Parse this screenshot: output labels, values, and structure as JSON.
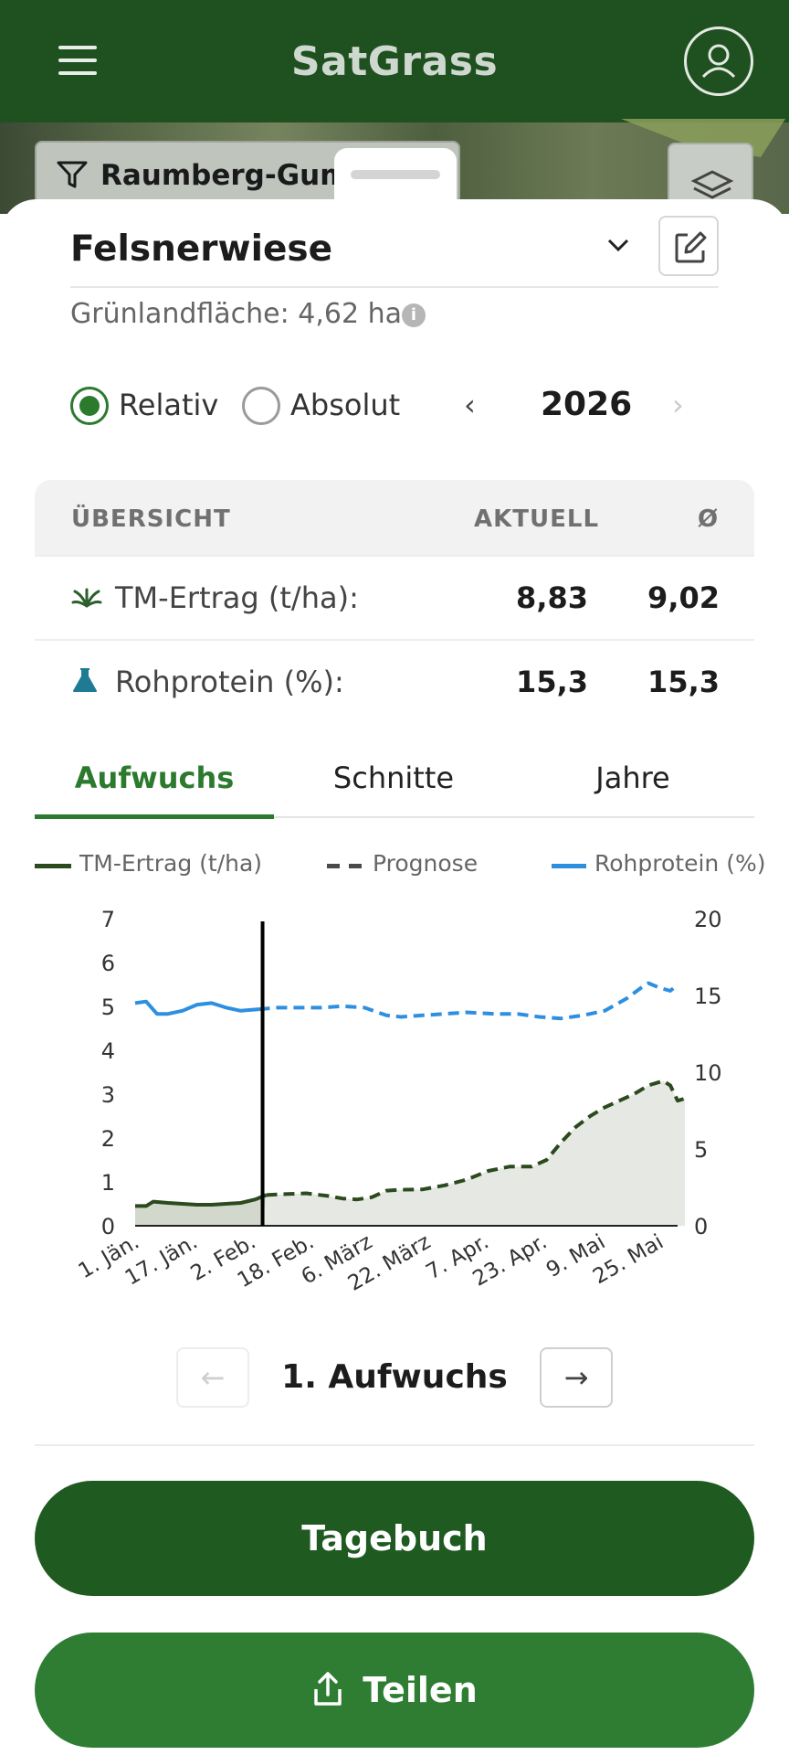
{
  "app": {
    "title": "SatGrass"
  },
  "filter": {
    "label": "Raumberg-Gump"
  },
  "field": {
    "name": "Felsnerwiese",
    "area_label": "Grünlandfläche: 4,62 ha",
    "info_glyph": "i"
  },
  "mode": {
    "relative": "Relativ",
    "absolute": "Absolut",
    "selected": "Relativ"
  },
  "year": {
    "prev": "‹",
    "value": "2026",
    "next": "›"
  },
  "overview": {
    "header": {
      "title": "ÜBERSICHT",
      "current": "AKTUELL",
      "avg": "Ø"
    },
    "rows": [
      {
        "label": "TM-Ertrag (t/ha):",
        "current": "8,83",
        "avg": "9,02",
        "icon": "grass-icon"
      },
      {
        "label": "Rohprotein (%):",
        "current": "15,3",
        "avg": "15,3",
        "icon": "flask-icon"
      }
    ]
  },
  "tabs": [
    {
      "label": "Aufwuchs",
      "active": true
    },
    {
      "label": "Schnitte"
    },
    {
      "label": "Jahre"
    }
  ],
  "legend": {
    "yield": "TM-Ertrag (t/ha)",
    "forecast": "Prognose",
    "protein": "Rohprotein (%)"
  },
  "colors": {
    "primary": "#1f5120",
    "accent": "#2c7a2e",
    "yield": "#2b4a1e",
    "forecast": "#4a4a4a",
    "protein": "#2e8fe0",
    "area": "#e6e8e3"
  },
  "chart_data": {
    "type": "line",
    "x_ticks": [
      "1. Jän.",
      "17. Jän.",
      "2. Feb.",
      "18. Feb.",
      "6. März",
      "22. März",
      "7. Apr.",
      "23. Apr.",
      "9. Mai",
      "25. Mai"
    ],
    "x_unit": "day of year",
    "x_tick_days": [
      1,
      17,
      33,
      49,
      65,
      81,
      97,
      113,
      129,
      145
    ],
    "xlim": [
      1,
      150
    ],
    "current_day": 36,
    "y_left": {
      "ticks": [
        "0",
        "1",
        "2",
        "3",
        "4",
        "5",
        "6",
        "7"
      ],
      "lim": [
        0,
        7
      ]
    },
    "y_right": {
      "ticks": [
        "0",
        "5",
        "10",
        "15",
        "20"
      ],
      "lim": [
        0,
        20
      ]
    },
    "series": [
      {
        "name": "TM-Ertrag (t/ha)",
        "axis": "left",
        "points": [
          [
            1,
            0.45
          ],
          [
            4,
            0.45
          ],
          [
            6,
            0.55
          ],
          [
            10,
            0.52
          ],
          [
            14,
            0.5
          ],
          [
            18,
            0.48
          ],
          [
            22,
            0.48
          ],
          [
            26,
            0.5
          ],
          [
            30,
            0.52
          ],
          [
            34,
            0.6
          ],
          [
            37,
            0.7
          ]
        ]
      },
      {
        "name": "Prognose",
        "axis": "left",
        "points": [
          [
            37,
            0.7
          ],
          [
            42,
            0.72
          ],
          [
            48,
            0.74
          ],
          [
            54,
            0.68
          ],
          [
            58,
            0.62
          ],
          [
            62,
            0.6
          ],
          [
            66,
            0.65
          ],
          [
            70,
            0.8
          ],
          [
            74,
            0.82
          ],
          [
            80,
            0.83
          ],
          [
            86,
            0.92
          ],
          [
            92,
            1.05
          ],
          [
            98,
            1.25
          ],
          [
            104,
            1.35
          ],
          [
            110,
            1.35
          ],
          [
            114,
            1.5
          ],
          [
            118,
            1.9
          ],
          [
            122,
            2.25
          ],
          [
            126,
            2.5
          ],
          [
            130,
            2.7
          ],
          [
            134,
            2.85
          ],
          [
            138,
            3.0
          ],
          [
            142,
            3.2
          ],
          [
            146,
            3.3
          ],
          [
            148,
            3.2
          ],
          [
            150,
            2.85
          ],
          [
            152,
            2.9
          ]
        ]
      },
      {
        "name": "Rohprotein (%)",
        "axis": "right",
        "points": [
          [
            1,
            14.5
          ],
          [
            4,
            14.6
          ],
          [
            7,
            13.8
          ],
          [
            10,
            13.8
          ],
          [
            14,
            14.0
          ],
          [
            18,
            14.4
          ],
          [
            22,
            14.5
          ],
          [
            26,
            14.2
          ],
          [
            30,
            14.0
          ],
          [
            35,
            14.1
          ],
          [
            40,
            14.2
          ],
          [
            46,
            14.2
          ],
          [
            52,
            14.2
          ],
          [
            58,
            14.3
          ],
          [
            64,
            14.2
          ],
          [
            70,
            13.7
          ],
          [
            74,
            13.6
          ],
          [
            80,
            13.7
          ],
          [
            86,
            13.8
          ],
          [
            92,
            13.9
          ],
          [
            100,
            13.8
          ],
          [
            106,
            13.8
          ],
          [
            112,
            13.6
          ],
          [
            118,
            13.5
          ],
          [
            124,
            13.7
          ],
          [
            130,
            14.0
          ],
          [
            136,
            14.8
          ],
          [
            140,
            15.5
          ],
          [
            142,
            15.8
          ],
          [
            145,
            15.5
          ],
          [
            148,
            15.3
          ],
          [
            150,
            15.7
          ]
        ]
      }
    ]
  },
  "cut_nav": {
    "prev": "←",
    "title": "1. Aufwuchs",
    "next": "→"
  },
  "buttons": {
    "diary": "Tagebuch",
    "share": "Teilen"
  }
}
